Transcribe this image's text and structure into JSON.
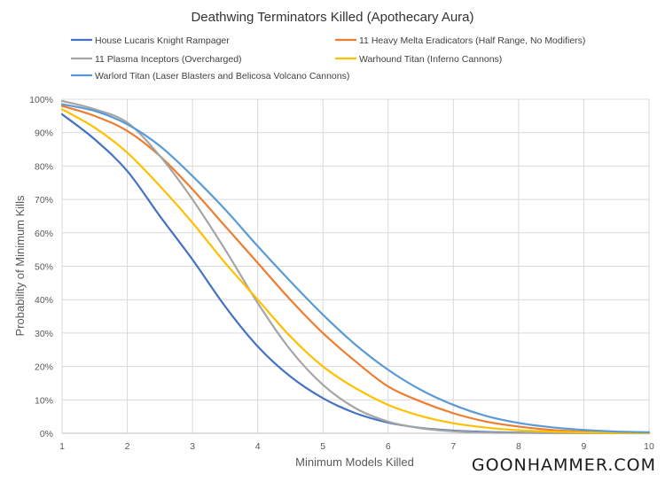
{
  "chart_data": {
    "type": "line",
    "title": "Deathwing Terminators Killed (Apothecary Aura)",
    "xlabel": "Minimum Models Killed",
    "ylabel": "Probability of Minimum Kills",
    "xlim": [
      1,
      10
    ],
    "ylim": [
      0,
      100
    ],
    "x_ticks": [
      1,
      2,
      3,
      4,
      5,
      6,
      7,
      8,
      9,
      10
    ],
    "y_ticks": [
      "0%",
      "10%",
      "20%",
      "30%",
      "40%",
      "50%",
      "60%",
      "70%",
      "80%",
      "90%",
      "100%"
    ],
    "grid": "vertical and horizontal",
    "legend_position": "top",
    "series": [
      {
        "name": "House Lucaris Knight Rampager",
        "color": "#4472C4",
        "x": [
          1,
          1.5,
          2,
          2.5,
          3,
          3.5,
          4,
          4.5,
          5,
          5.5,
          6,
          6.5,
          7,
          7.5,
          8,
          8.5,
          9,
          9.5,
          10
        ],
        "y": [
          95.5,
          88,
          78.5,
          65,
          52,
          38,
          26,
          17,
          10.5,
          6,
          3.2,
          1.6,
          0.8,
          0.4,
          0.2,
          0.1,
          0.05,
          0.02,
          0.01
        ]
      },
      {
        "name": "11 Heavy Melta Eradicators (Half Range, No Modifiers)",
        "color": "#ED7D31",
        "x": [
          1,
          1.5,
          2,
          2.5,
          3,
          3.5,
          4,
          4.5,
          5,
          5.5,
          6,
          6.5,
          7,
          7.5,
          8,
          8.5,
          9,
          9.5,
          10
        ],
        "y": [
          98,
          95,
          90.5,
          83,
          73,
          62,
          51,
          40,
          30,
          21.5,
          14,
          9.5,
          6,
          3.5,
          2,
          1,
          0.5,
          0.25,
          0.1
        ]
      },
      {
        "name": "11 Plasma Inceptors (Overcharged)",
        "color": "#A5A5A5",
        "x": [
          1,
          1.5,
          2,
          2.5,
          3,
          3.5,
          4,
          4.5,
          5,
          5.5,
          6,
          6.5,
          7,
          7.5,
          8,
          8.5,
          9,
          9.5,
          10
        ],
        "y": [
          99.5,
          97,
          93,
          83,
          70,
          55,
          39,
          25,
          14.5,
          7.5,
          3.5,
          1.5,
          0.6,
          0.2,
          0.1,
          0.05,
          0.02,
          0.01,
          0
        ]
      },
      {
        "name": "Warhound Titan (Inferno Cannons)",
        "color": "#FFC000",
        "x": [
          1,
          1.5,
          2,
          2.5,
          3,
          3.5,
          4,
          4.5,
          5,
          5.5,
          6,
          6.5,
          7,
          7.5,
          8,
          8.5,
          9,
          9.5,
          10
        ],
        "y": [
          97,
          91.5,
          84,
          74,
          63,
          51,
          40,
          29,
          20,
          13.5,
          8.5,
          5.2,
          3,
          1.7,
          0.9,
          0.5,
          0.25,
          0.1,
          0.05
        ]
      },
      {
        "name": "Warlord Titan (Laser Blasters and Belicosa Volcano Cannons)",
        "color": "#5B9BD5",
        "x": [
          1,
          1.5,
          2,
          2.5,
          3,
          3.5,
          4,
          4.5,
          5,
          5.5,
          6,
          6.5,
          7,
          7.5,
          8,
          8.5,
          9,
          9.5,
          10
        ],
        "y": [
          98.5,
          96.5,
          92.5,
          86,
          77,
          67,
          56,
          45.5,
          35.5,
          26.5,
          19,
          13,
          8.5,
          5.2,
          3.1,
          1.8,
          1,
          0.5,
          0.3
        ]
      }
    ]
  },
  "watermark": "GOONHAMMER.COM"
}
